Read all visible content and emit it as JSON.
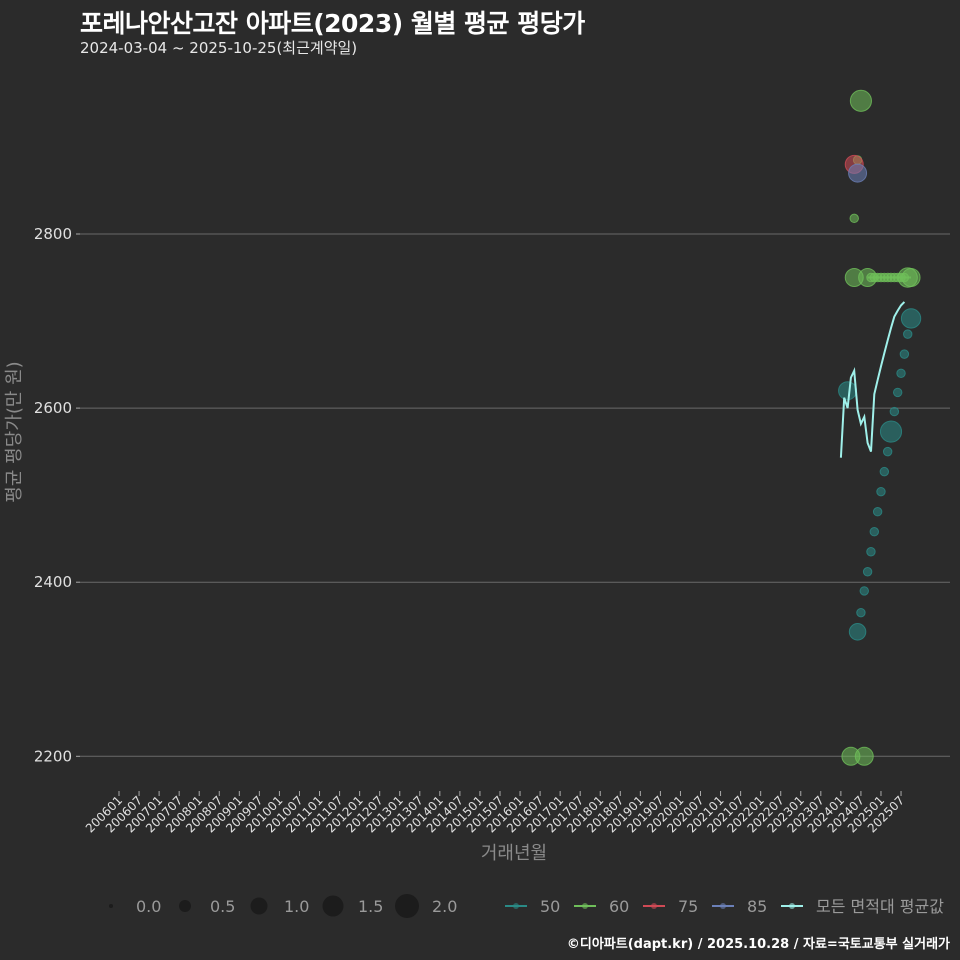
{
  "header": {
    "title": "포레나안산고잔 아파트(2023) 월별 평균 평당가",
    "subtitle": "2024-03-04 ~ 2025-10-25(최근계약일)"
  },
  "caption": "©디아파트(dapt.kr) / 2025.10.28 / 자료=국토교통부 실거래가",
  "colors": {
    "background": "#2b2b2b",
    "grid": "#6a6a6a",
    "s50": "#2a8a86",
    "s60": "#6fbf5a",
    "s75": "#d04a55",
    "s85": "#6b80b8",
    "all": "#9ff0ea"
  },
  "chart_data": {
    "type": "scatter",
    "title": "포레나안산고잔 아파트(2023) 월별 평균 평당가",
    "subtitle": "2024-03-04 ~ 2025-10-25(최근계약일)",
    "xlabel": "거래년월",
    "ylabel": "평균 평당가(만 원)",
    "ylim": [
      2130,
      2990
    ],
    "yticks": [
      2200,
      2400,
      2600,
      2800
    ],
    "xticks": [
      "200601",
      "200607",
      "200701",
      "200707",
      "200801",
      "200807",
      "200901",
      "200907",
      "201001",
      "201007",
      "201101",
      "201107",
      "201201",
      "201207",
      "201301",
      "201307",
      "201401",
      "201407",
      "201501",
      "201507",
      "201601",
      "201607",
      "201701",
      "201707",
      "201801",
      "201807",
      "201901",
      "201907",
      "202001",
      "202007",
      "202101",
      "202107",
      "202201",
      "202207",
      "202301",
      "202307",
      "202401",
      "202407",
      "202501",
      "202507"
    ],
    "grid": "horizontal",
    "legend_size": {
      "title": "",
      "entries": [
        "0.0",
        "0.5",
        "1.0",
        "1.5",
        "2.0"
      ]
    },
    "legend_color": {
      "entries": [
        "50",
        "60",
        "75",
        "85",
        "모든 면적대 평균값"
      ]
    },
    "series": [
      {
        "name": "50",
        "color": "#2a8a86",
        "points": [
          {
            "x": "202403",
            "y": 2620,
            "size": 1.0
          },
          {
            "x": "202406",
            "y": 2343,
            "size": 0.8
          },
          {
            "x": "202407",
            "y": 2365,
            "size": 0.1
          },
          {
            "x": "202408",
            "y": 2390,
            "size": 0.1
          },
          {
            "x": "202409",
            "y": 2412,
            "size": 0.1
          },
          {
            "x": "202410",
            "y": 2435,
            "size": 0.1
          },
          {
            "x": "202411",
            "y": 2458,
            "size": 0.1
          },
          {
            "x": "202412",
            "y": 2481,
            "size": 0.1
          },
          {
            "x": "202501",
            "y": 2504,
            "size": 0.1
          },
          {
            "x": "202502",
            "y": 2527,
            "size": 0.1
          },
          {
            "x": "202503",
            "y": 2550,
            "size": 0.1
          },
          {
            "x": "202504",
            "y": 2573,
            "size": 1.5
          },
          {
            "x": "202505",
            "y": 2596,
            "size": 0.1
          },
          {
            "x": "202506",
            "y": 2618,
            "size": 0.1
          },
          {
            "x": "202507",
            "y": 2640,
            "size": 0.1
          },
          {
            "x": "202508",
            "y": 2662,
            "size": 0.1
          },
          {
            "x": "202509",
            "y": 2685,
            "size": 0.1
          },
          {
            "x": "202510",
            "y": 2703,
            "size": 1.2
          }
        ]
      },
      {
        "name": "60",
        "color": "#6fbf5a",
        "points": [
          {
            "x": "202404",
            "y": 2200,
            "size": 1.0
          },
          {
            "x": "202405",
            "y": 2750,
            "size": 1.0
          },
          {
            "x": "202405",
            "y": 2818,
            "size": 0.1
          },
          {
            "x": "202406",
            "y": 2885,
            "size": 0.1
          },
          {
            "x": "202407",
            "y": 2953,
            "size": 1.5
          },
          {
            "x": "202408",
            "y": 2200,
            "size": 1.0
          },
          {
            "x": "202409",
            "y": 2750,
            "size": 1.0
          },
          {
            "x": "202410",
            "y": 2750,
            "size": 0.1
          },
          {
            "x": "202411",
            "y": 2750,
            "size": 0.1
          },
          {
            "x": "202412",
            "y": 2750,
            "size": 0.1
          },
          {
            "x": "202501",
            "y": 2750,
            "size": 0.1
          },
          {
            "x": "202502",
            "y": 2750,
            "size": 0.1
          },
          {
            "x": "202503",
            "y": 2750,
            "size": 0.1
          },
          {
            "x": "202504",
            "y": 2750,
            "size": 0.1
          },
          {
            "x": "202505",
            "y": 2750,
            "size": 0.1
          },
          {
            "x": "202506",
            "y": 2750,
            "size": 0.1
          },
          {
            "x": "202507",
            "y": 2750,
            "size": 0.1
          },
          {
            "x": "202508",
            "y": 2750,
            "size": 0.1
          },
          {
            "x": "202509",
            "y": 2750,
            "size": 1.2
          },
          {
            "x": "202510",
            "y": 2750,
            "size": 1.0
          }
        ]
      },
      {
        "name": "75",
        "color": "#d04a55",
        "points": [
          {
            "x": "202405",
            "y": 2880,
            "size": 1.0
          }
        ]
      },
      {
        "name": "85",
        "color": "#6b80b8",
        "points": [
          {
            "x": "202406",
            "y": 2870,
            "size": 1.0
          }
        ]
      },
      {
        "name": "모든 면적대 평균값",
        "color": "#9ff0ea",
        "type": "line",
        "points": [
          {
            "x": "202401",
            "y": 2543
          },
          {
            "x": "202402",
            "y": 2612
          },
          {
            "x": "202403",
            "y": 2600
          },
          {
            "x": "202404",
            "y": 2635
          },
          {
            "x": "202405",
            "y": 2643
          },
          {
            "x": "202406",
            "y": 2598
          },
          {
            "x": "202407",
            "y": 2582
          },
          {
            "x": "202408",
            "y": 2590
          },
          {
            "x": "202409",
            "y": 2560
          },
          {
            "x": "202410",
            "y": 2550
          },
          {
            "x": "202411",
            "y": 2616
          },
          {
            "x": "202412",
            "y": 2632
          },
          {
            "x": "202501",
            "y": 2648
          },
          {
            "x": "202502",
            "y": 2663
          },
          {
            "x": "202503",
            "y": 2678
          },
          {
            "x": "202504",
            "y": 2692
          },
          {
            "x": "202505",
            "y": 2705
          },
          {
            "x": "202506",
            "y": 2712
          },
          {
            "x": "202507",
            "y": 2718
          },
          {
            "x": "202508",
            "y": 2722
          }
        ]
      }
    ]
  },
  "axes": {
    "y_ticks": [
      "2800",
      "2600",
      "2400",
      "2200"
    ],
    "y_label": "평균 평당가(만 원)",
    "x_label": "거래년월"
  },
  "legend": {
    "size_items": [
      {
        "label": "0.0",
        "r": 2
      },
      {
        "label": "0.5",
        "r": 6
      },
      {
        "label": "1.0",
        "r": 8.5
      },
      {
        "label": "1.5",
        "r": 10.5
      },
      {
        "label": "2.0",
        "r": 12
      }
    ],
    "color_items": [
      {
        "label": "50",
        "color": "#2a8a86"
      },
      {
        "label": "60",
        "color": "#6fbf5a"
      },
      {
        "label": "75",
        "color": "#d04a55"
      },
      {
        "label": "85",
        "color": "#6b80b8"
      },
      {
        "label": "모든 면적대 평균값",
        "color": "#9ff0ea"
      }
    ]
  }
}
